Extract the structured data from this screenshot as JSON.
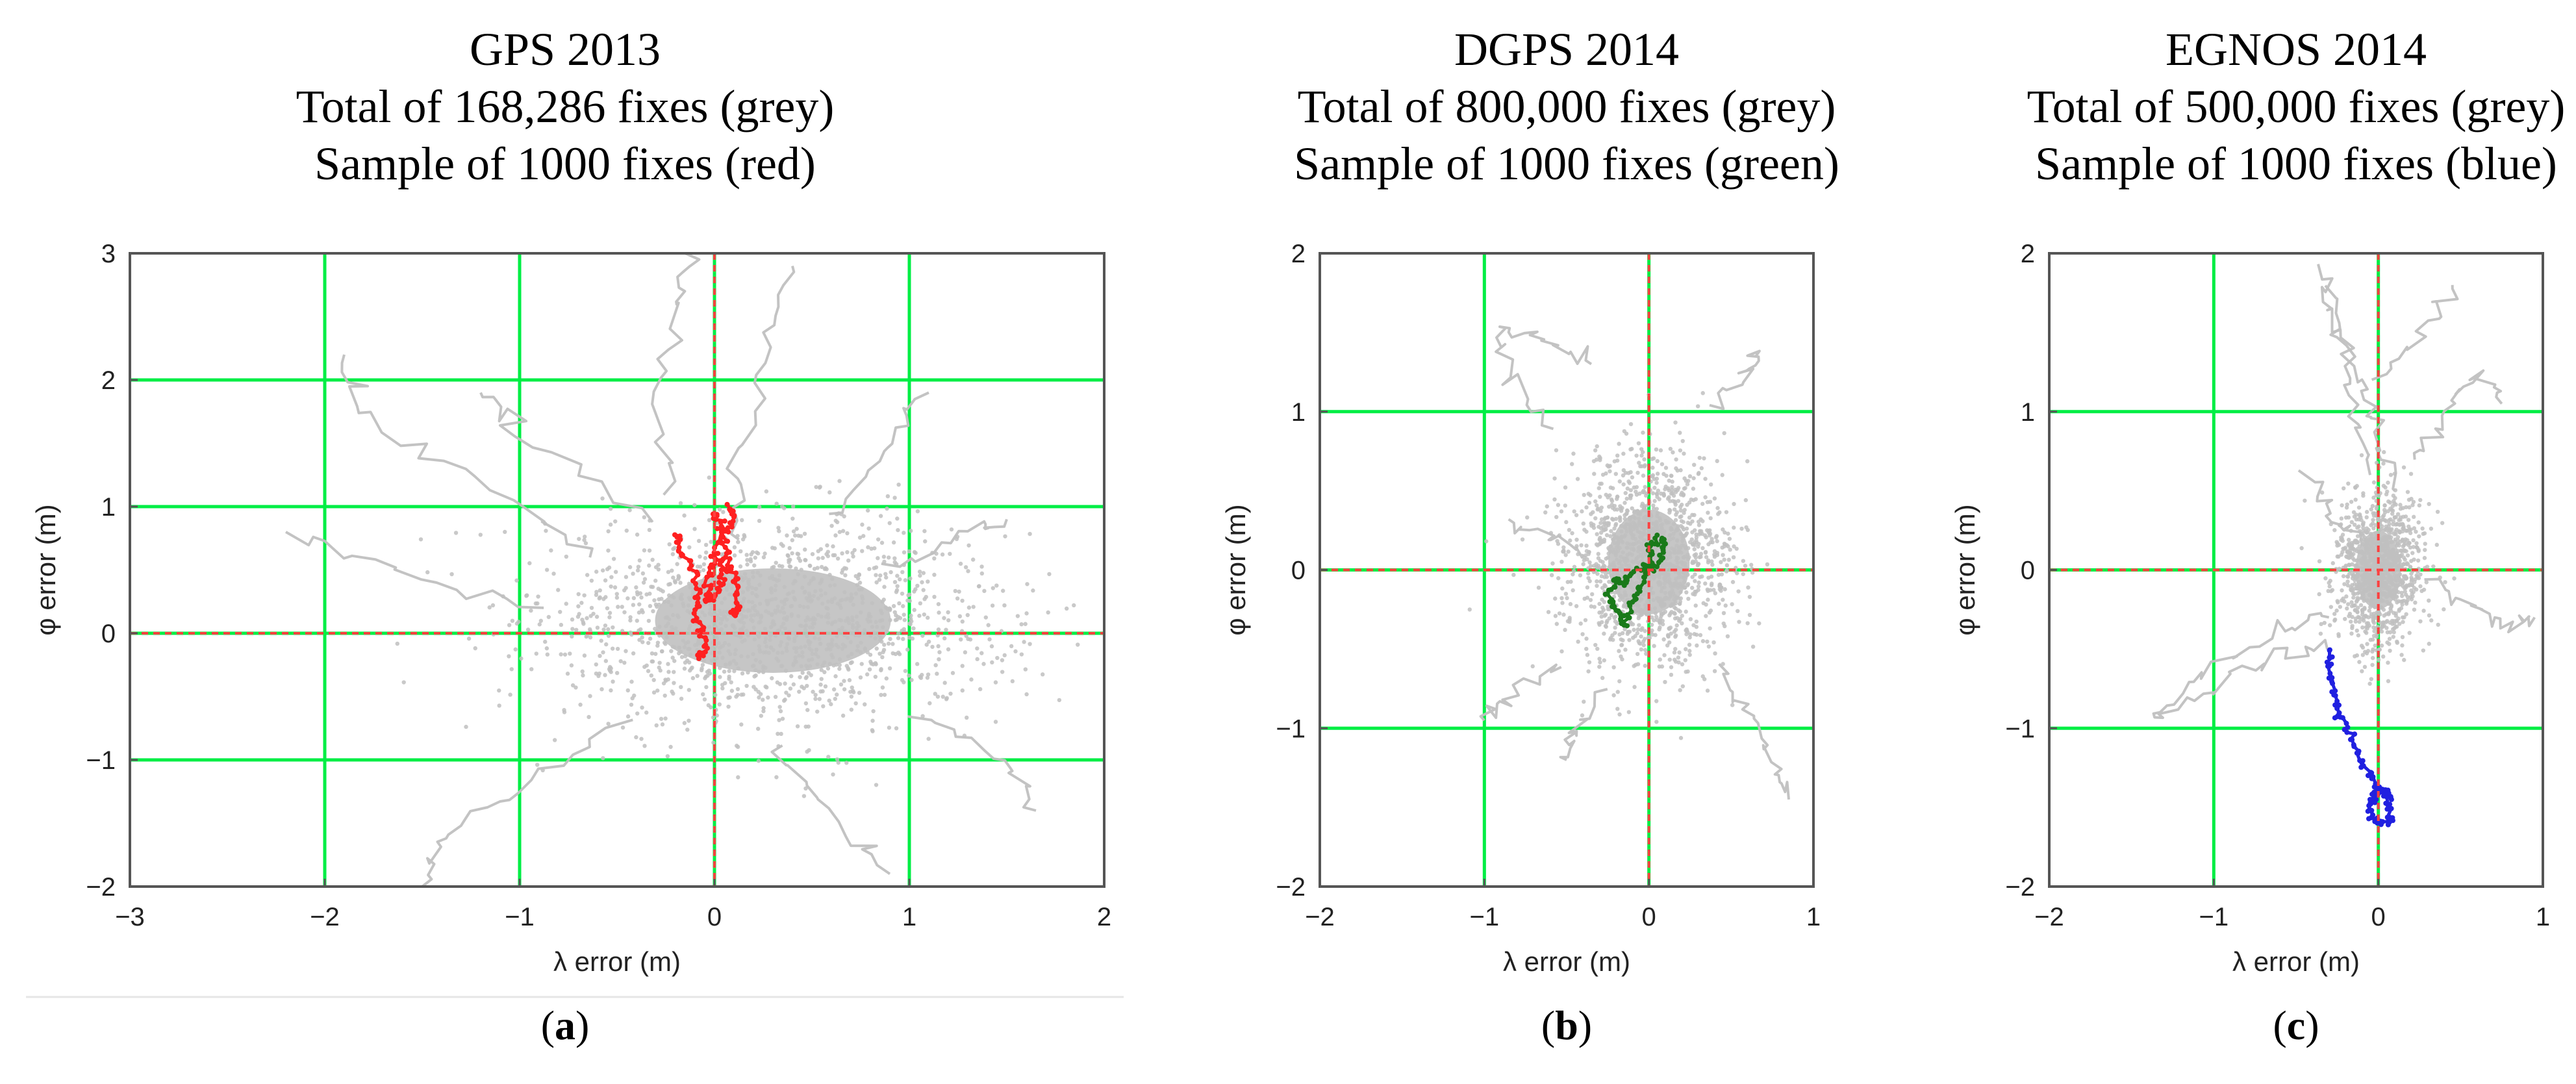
{
  "chart_data": [
    {
      "type": "scatter",
      "id": "a",
      "caption": "a",
      "title": [
        "GPS 2013",
        "Total of 168,286 fixes (grey)",
        "Sample of 1000 fixes (red)"
      ],
      "xlabel": "λ error (m)",
      "ylabel": "φ error (m)",
      "xlim": [
        -3,
        2
      ],
      "ylim": [
        -2,
        3
      ],
      "xticks": [
        -3,
        -2,
        -1,
        0,
        1,
        2
      ],
      "yticks": [
        -2,
        -1,
        0,
        1,
        2,
        3
      ],
      "xtick_labels": [
        "−3",
        "−2",
        "−1",
        "0",
        "1",
        "2"
      ],
      "ytick_labels": [
        "−2",
        "−1",
        "0",
        "1",
        "2",
        "3"
      ],
      "grid": true,
      "grid_color": "#00ee44",
      "zero_line_color": "#ff4040",
      "series": [
        {
          "name": "Total of 168,286 fixes (grey)",
          "color": "#c0c0c0",
          "cloud": {
            "center": [
              0.3,
              0.1
            ],
            "spread": [
              1.1,
              0.75
            ],
            "n_points": 1500
          },
          "trails": [
            [
              [
                0.1,
                0.7
              ],
              [
                0.15,
                1.4
              ],
              [
                0.25,
                2.3
              ],
              [
                0.4,
                2.9
              ]
            ],
            [
              [
                -0.2,
                1.1
              ],
              [
                -0.3,
                1.9
              ],
              [
                -0.2,
                2.6
              ],
              [
                -0.15,
                3.0
              ]
            ],
            [
              [
                -0.6,
                0.6
              ],
              [
                -1.1,
                1.1
              ],
              [
                -1.8,
                1.7
              ],
              [
                -1.9,
                2.2
              ]
            ],
            [
              [
                -0.9,
                0.2
              ],
              [
                -1.6,
                0.5
              ],
              [
                -2.2,
                0.8
              ]
            ],
            [
              [
                -0.5,
                -0.7
              ],
              [
                -1.0,
                -1.2
              ],
              [
                -1.4,
                -1.6
              ],
              [
                -1.5,
                -2.0
              ]
            ],
            [
              [
                0.3,
                -0.9
              ],
              [
                0.6,
                -1.4
              ],
              [
                0.9,
                -1.9
              ]
            ],
            [
              [
                0.9,
                0.5
              ],
              [
                1.3,
                0.8
              ],
              [
                1.5,
                0.9
              ]
            ],
            [
              [
                1.0,
                -0.6
              ],
              [
                1.5,
                -1.0
              ],
              [
                1.65,
                -1.4
              ]
            ],
            [
              [
                -0.3,
                0.9
              ],
              [
                -1.0,
                1.6
              ],
              [
                -1.2,
                1.9
              ]
            ],
            [
              [
                0.6,
                0.9
              ],
              [
                0.9,
                1.5
              ],
              [
                1.1,
                1.9
              ]
            ]
          ]
        },
        {
          "name": "Sample of 1000 fixes (red)",
          "color": "#ff2020",
          "trails": [
            [
              [
                -0.2,
                0.8
              ],
              [
                -0.18,
                0.65
              ],
              [
                -0.1,
                0.5
              ],
              [
                -0.08,
                0.3
              ],
              [
                -0.1,
                0.1
              ],
              [
                -0.05,
                -0.1
              ],
              [
                -0.08,
                -0.2
              ]
            ],
            [
              [
                0.0,
                0.95
              ],
              [
                0.05,
                0.85
              ],
              [
                0.0,
                0.65
              ],
              [
                0.05,
                0.5
              ],
              [
                0.03,
                0.35
              ],
              [
                -0.03,
                0.25
              ],
              [
                -0.03,
                0.45
              ],
              [
                0.0,
                0.6
              ]
            ],
            [
              [
                0.07,
                1.0
              ],
              [
                0.1,
                0.9
              ],
              [
                0.05,
                0.75
              ],
              [
                0.08,
                0.55
              ],
              [
                0.1,
                0.4
              ],
              [
                0.13,
                0.2
              ],
              [
                0.1,
                0.15
              ]
            ]
          ]
        }
      ]
    },
    {
      "type": "scatter",
      "id": "b",
      "caption": "b",
      "title": [
        "DGPS 2014",
        "Total of 800,000 fixes (grey)",
        "Sample of 1000 fixes (green)"
      ],
      "xlabel": "λ error (m)",
      "ylabel": "φ error (m)",
      "xlim": [
        -2,
        1
      ],
      "ylim": [
        -2,
        2
      ],
      "xticks": [
        -2,
        -1,
        0,
        1
      ],
      "yticks": [
        -2,
        -1,
        0,
        1,
        2
      ],
      "xtick_labels": [
        "−2",
        "−1",
        "0",
        "1"
      ],
      "ytick_labels": [
        "−2",
        "−1",
        "0",
        "1",
        "2"
      ],
      "grid": true,
      "grid_color": "#00ee44",
      "zero_line_color": "#ff4040",
      "series": [
        {
          "name": "Total of 800,000 fixes (grey)",
          "color": "#c0c0c0",
          "cloud": {
            "center": [
              0.0,
              0.05
            ],
            "spread": [
              0.45,
              0.6
            ],
            "n_points": 1500
          },
          "trails": [
            [
              [
                -0.6,
                0.9
              ],
              [
                -0.85,
                1.25
              ],
              [
                -0.9,
                1.55
              ],
              [
                -0.6,
                1.45
              ],
              [
                -0.35,
                1.3
              ]
            ],
            [
              [
                0.4,
                -0.6
              ],
              [
                0.6,
                -0.9
              ],
              [
                0.75,
                -1.2
              ],
              [
                0.85,
                -1.45
              ]
            ],
            [
              [
                -0.5,
                -0.6
              ],
              [
                -0.85,
                -0.8
              ],
              [
                -1.0,
                -0.95
              ]
            ],
            [
              [
                -0.3,
                -0.8
              ],
              [
                -0.45,
                -1.05
              ],
              [
                -0.5,
                -1.2
              ]
            ],
            [
              [
                0.4,
                1.0
              ],
              [
                0.6,
                1.25
              ],
              [
                0.65,
                1.35
              ]
            ],
            [
              [
                -0.9,
                0.35
              ],
              [
                -0.6,
                0.2
              ],
              [
                -0.4,
                0.1
              ]
            ]
          ]
        },
        {
          "name": "Sample of 1000 fixes (green)",
          "color": "#1a7a1a",
          "trails": [
            [
              [
                0.05,
                0.2
              ],
              [
                0.0,
                0.15
              ],
              [
                0.02,
                0.05
              ],
              [
                -0.08,
                0.0
              ],
              [
                -0.15,
                -0.1
              ],
              [
                -0.2,
                -0.05
              ],
              [
                -0.25,
                -0.15
              ],
              [
                -0.2,
                -0.25
              ],
              [
                -0.15,
                -0.35
              ],
              [
                -0.1,
                -0.2
              ],
              [
                -0.05,
                -0.1
              ],
              [
                0.0,
                0.0
              ],
              [
                0.05,
                0.05
              ],
              [
                0.1,
                0.15
              ],
              [
                0.08,
                0.2
              ]
            ]
          ]
        }
      ]
    },
    {
      "type": "scatter",
      "id": "c",
      "caption": "c",
      "title": [
        "EGNOS 2014",
        "Total of 500,000 fixes (grey)",
        "Sample of 1000 fixes (blue)"
      ],
      "xlabel": "λ error (m)",
      "ylabel": "φ error (m)",
      "xlim": [
        -2,
        1
      ],
      "ylim": [
        -2,
        2
      ],
      "xticks": [
        -2,
        -1,
        0,
        1
      ],
      "yticks": [
        -2,
        -1,
        0,
        1,
        2
      ],
      "xtick_labels": [
        "−2",
        "−1",
        "0",
        "1"
      ],
      "ytick_labels": [
        "−2",
        "−1",
        "0",
        "1",
        "2"
      ],
      "grid": true,
      "grid_color": "#00ee44",
      "zero_line_color": "#ff4040",
      "series": [
        {
          "name": "Total of 500,000 fixes (grey)",
          "color": "#c0c0c0",
          "cloud": {
            "center": [
              0.0,
              0.0
            ],
            "spread": [
              0.25,
              0.45
            ],
            "n_points": 1100
          },
          "trails": [
            [
              [
                -0.35,
                1.9
              ],
              [
                -0.3,
                1.6
              ],
              [
                -0.1,
                1.2
              ],
              [
                0.0,
                0.9
              ],
              [
                0.1,
                0.5
              ]
            ],
            [
              [
                -0.3,
                1.75
              ],
              [
                -0.2,
                1.4
              ],
              [
                -0.15,
                1.0
              ],
              [
                -0.05,
                0.6
              ]
            ],
            [
              [
                -0.3,
                -0.45
              ],
              [
                -0.6,
                -0.55
              ],
              [
                -1.0,
                -0.75
              ],
              [
                -1.4,
                -0.95
              ],
              [
                -1.1,
                -0.7
              ],
              [
                -0.6,
                -0.4
              ],
              [
                -0.3,
                -0.3
              ]
            ],
            [
              [
                0.0,
                1.2
              ],
              [
                0.3,
                1.5
              ],
              [
                0.45,
                1.8
              ]
            ],
            [
              [
                -0.4,
                0.6
              ],
              [
                -0.3,
                0.35
              ],
              [
                -0.1,
                0.15
              ]
            ],
            [
              [
                0.3,
                -0.1
              ],
              [
                0.6,
                -0.25
              ],
              [
                0.8,
                -0.35
              ],
              [
                0.95,
                -0.3
              ]
            ],
            [
              [
                0.2,
                0.7
              ],
              [
                0.4,
                0.95
              ],
              [
                0.6,
                1.25
              ],
              [
                0.75,
                1.05
              ]
            ]
          ]
        },
        {
          "name": "Sample of 1000 fixes (blue)",
          "color": "#2020e0",
          "trails": [
            [
              [
                -0.3,
                -0.5
              ],
              [
                -0.3,
                -0.65
              ],
              [
                -0.28,
                -0.8
              ],
              [
                -0.22,
                -0.95
              ],
              [
                -0.15,
                -1.1
              ],
              [
                -0.08,
                -1.25
              ],
              [
                -0.02,
                -1.35
              ],
              [
                0.05,
                -1.45
              ],
              [
                0.08,
                -1.55
              ],
              [
                0.05,
                -1.6
              ],
              [
                -0.02,
                -1.6
              ],
              [
                -0.05,
                -1.5
              ],
              [
                -0.02,
                -1.4
              ],
              [
                0.05,
                -1.38
              ],
              [
                0.08,
                -1.45
              ]
            ]
          ]
        }
      ]
    }
  ]
}
